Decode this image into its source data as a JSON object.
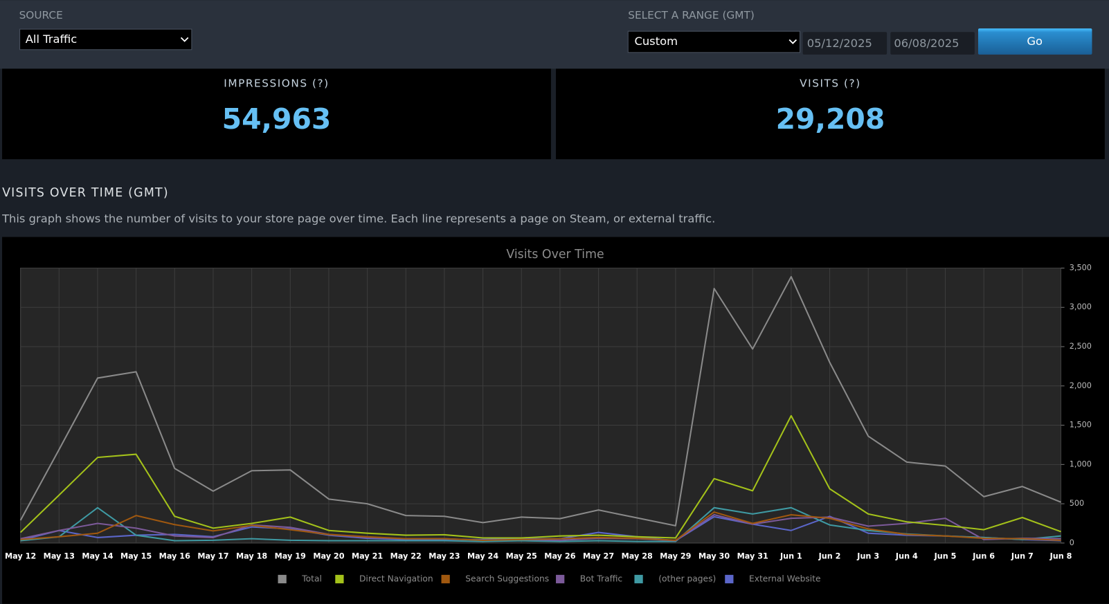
{
  "source": {
    "label": "SOURCE",
    "selected": "All Traffic"
  },
  "range": {
    "label": "SELECT A RANGE (GMT)",
    "selected": "Custom",
    "start": "05/12/2025",
    "end": "06/08/2025",
    "button": "Go"
  },
  "stats": [
    {
      "label": "IMPRESSIONS (?)",
      "value": "54,963"
    },
    {
      "label": "VISITS (?)",
      "value": "29,208"
    }
  ],
  "section": {
    "title": "VISITS OVER TIME (GMT)",
    "description": "This graph shows the number of visits to your store page over time. Each line represents a page on Steam, or external traffic."
  },
  "chart_data": {
    "type": "line",
    "title": "Visits Over Time",
    "categories": [
      "May 12",
      "May 13",
      "May 14",
      "May 15",
      "May 16",
      "May 17",
      "May 18",
      "May 19",
      "May 20",
      "May 21",
      "May 22",
      "May 23",
      "May 24",
      "May 25",
      "May 26",
      "May 27",
      "May 28",
      "May 29",
      "May 30",
      "May 31",
      "Jun 1",
      "Jun 2",
      "Jun 3",
      "Jun 4",
      "Jun 5",
      "Jun 6",
      "Jun 7",
      "Jun 8"
    ],
    "series": [
      {
        "name": "Total",
        "color": "#8a8a8a",
        "values": [
          290,
          1190,
          2100,
          2180,
          950,
          660,
          920,
          930,
          560,
          500,
          350,
          340,
          260,
          330,
          310,
          420,
          320,
          220,
          3240,
          2470,
          3390,
          2300,
          1360,
          1030,
          980,
          590,
          720,
          520
        ]
      },
      {
        "name": "Direct Navigation",
        "color": "#a4c21a",
        "values": [
          135,
          610,
          1090,
          1130,
          340,
          190,
          250,
          330,
          160,
          125,
          100,
          105,
          65,
          65,
          90,
          100,
          80,
          65,
          820,
          665,
          1620,
          690,
          370,
          270,
          225,
          170,
          325,
          145
        ]
      },
      {
        "name": "Search Suggestions",
        "color": "#a0580f",
        "values": [
          45,
          80,
          125,
          350,
          235,
          155,
          225,
          170,
          110,
          80,
          55,
          55,
          35,
          45,
          55,
          70,
          60,
          35,
          395,
          250,
          360,
          315,
          180,
          110,
          90,
          60,
          55,
          35
        ]
      },
      {
        "name": "Bot Traffic",
        "color": "#7c5a9a",
        "values": [
          55,
          160,
          250,
          190,
          90,
          70,
          230,
          200,
          110,
          70,
          55,
          55,
          35,
          45,
          35,
          60,
          55,
          30,
          360,
          240,
          315,
          330,
          215,
          250,
          315,
          45,
          60,
          55
        ]
      },
      {
        "name": "(other pages)",
        "color": "#3f9aa3",
        "values": [
          30,
          80,
          450,
          100,
          30,
          35,
          55,
          35,
          30,
          30,
          30,
          30,
          20,
          30,
          20,
          30,
          20,
          20,
          450,
          370,
          450,
          230,
          160,
          115,
          90,
          70,
          45,
          90
        ]
      },
      {
        "name": "External Website",
        "color": "#5b66c9",
        "values": [
          35,
          160,
          70,
          100,
          110,
          80,
          205,
          180,
          100,
          60,
          45,
          45,
          45,
          55,
          55,
          135,
          80,
          30,
          335,
          240,
          160,
          340,
          125,
          100,
          90,
          70,
          45,
          30
        ]
      }
    ],
    "ylim": [
      0,
      3500
    ],
    "yticks": [
      0,
      500,
      {
        "value": 1000,
        "label": "1,000"
      },
      {
        "value": 1500,
        "label": "1,500"
      },
      {
        "value": 2000,
        "label": "2,000"
      },
      {
        "value": 2500,
        "label": "2,500"
      },
      {
        "value": 3000,
        "label": "3,000"
      },
      {
        "value": 3500,
        "label": "3,500"
      }
    ],
    "grid": true,
    "legend": "bottom"
  }
}
